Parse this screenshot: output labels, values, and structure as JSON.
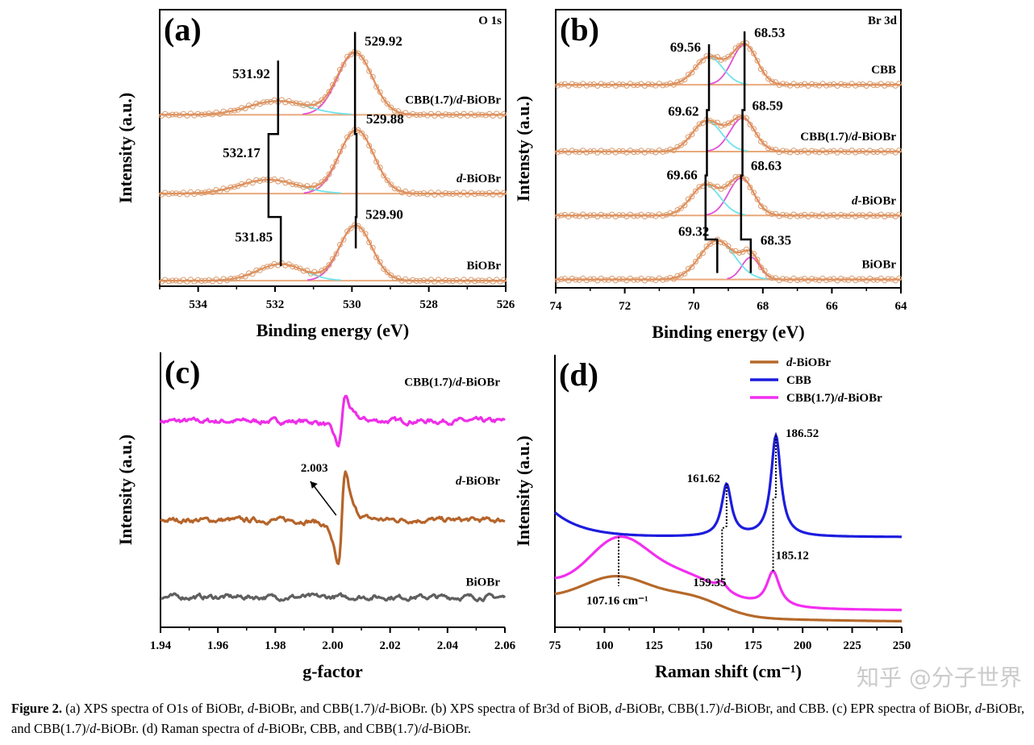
{
  "figure": {
    "caption_label": "Figure 2.",
    "caption_text": " (a) XPS spectra of O1s of BiOBr, d-BiOBr, and CBB(1.7)/d-BiOBr. (b) XPS spectra of Br3d of BiOB, d-BiOBr, CBB(1.7)/d-BiOBr, and CBB. (c) EPR spectra of BiOBr, d-BiOBr, and CBB(1.7)/d-BiOBr. (d) Raman spectra of d-BiOBr, CBB, and CBB(1.7)/d-BiOBr.",
    "watermark": "知乎 @分子世界"
  },
  "colors": {
    "envelope": "#e38b55",
    "markers": "#d99a6c",
    "component_main": "#e24fd6",
    "component_shoulder": "#6fe3ea",
    "baseline": "#e9a97c",
    "epr": [
      "#ee2ee8",
      "#b5642a",
      "#5f5f5f"
    ],
    "raman": [
      "#b5692a",
      "#1c1cde",
      "#f22ef0"
    ]
  },
  "chart_data": [
    {
      "type": "line",
      "panel_label": "(a)",
      "annotation": "O 1s",
      "xlabel": "Binding energy (eV)",
      "ylabel": "Intensity (a.u.)",
      "xlim": [
        535,
        526
      ],
      "xticks": [
        "534",
        "532",
        "530",
        "528",
        "526"
      ],
      "xtick_values": [
        534,
        532,
        530,
        528,
        526
      ],
      "minor_step": 1,
      "grid": false,
      "series": [
        {
          "name": "CBB(1.7)/d-BiOBr",
          "baseline": 0.62,
          "components": [
            {
              "center": 529.92,
              "amplitude": 0.225,
              "sigma": 0.45,
              "label": "529.92"
            },
            {
              "center": 531.92,
              "amplitude": 0.05,
              "sigma": 0.75,
              "label": "531.92"
            }
          ]
        },
        {
          "name": "d-BiOBr",
          "baseline": 0.335,
          "components": [
            {
              "center": 529.88,
              "amplitude": 0.23,
              "sigma": 0.45,
              "label": "529.88"
            },
            {
              "center": 532.17,
              "amplitude": 0.05,
              "sigma": 0.75,
              "label": "532.17"
            }
          ]
        },
        {
          "name": "BiOBr",
          "baseline": 0.02,
          "components": [
            {
              "center": 529.9,
              "amplitude": 0.2,
              "sigma": 0.42,
              "label": "529.90"
            },
            {
              "center": 531.85,
              "amplitude": 0.06,
              "sigma": 0.6,
              "label": "531.85"
            }
          ]
        }
      ]
    },
    {
      "type": "line",
      "panel_label": "(b)",
      "annotation": "Br 3d",
      "xlabel": "Binding energy (eV)",
      "ylabel": "Intensty (a.u.)",
      "xlim": [
        74,
        64
      ],
      "xticks": [
        "74",
        "72",
        "70",
        "68",
        "66",
        "64"
      ],
      "xtick_values": [
        74,
        72,
        70,
        68,
        66,
        64
      ],
      "minor_step": 1,
      "grid": false,
      "series": [
        {
          "name": "CBB",
          "baseline": 0.73,
          "components": [
            {
              "center": 68.53,
              "amplitude": 0.145,
              "sigma": 0.36,
              "label": "68.53"
            },
            {
              "center": 69.56,
              "amplitude": 0.1,
              "sigma": 0.4,
              "label": "69.56"
            }
          ]
        },
        {
          "name": "CBB(1.7)/d-BiOBr",
          "baseline": 0.49,
          "components": [
            {
              "center": 68.59,
              "amplitude": 0.12,
              "sigma": 0.36,
              "label": "68.59"
            },
            {
              "center": 69.62,
              "amplitude": 0.11,
              "sigma": 0.42,
              "label": "69.62"
            }
          ]
        },
        {
          "name": "d-BiOBr",
          "baseline": 0.26,
          "components": [
            {
              "center": 68.63,
              "amplitude": 0.135,
              "sigma": 0.36,
              "label": "68.63"
            },
            {
              "center": 69.66,
              "amplitude": 0.11,
              "sigma": 0.42,
              "label": "69.66"
            }
          ]
        },
        {
          "name": "BiOBr",
          "baseline": 0.03,
          "components": [
            {
              "center": 68.35,
              "amplitude": 0.08,
              "sigma": 0.26,
              "label": "68.35"
            },
            {
              "center": 69.32,
              "amplitude": 0.14,
              "sigma": 0.5,
              "label": "69.32"
            }
          ]
        }
      ]
    },
    {
      "type": "line",
      "panel_label": "(c)",
      "xlabel": "g-factor",
      "ylabel": "Intensity (a.u.)",
      "xlim": [
        1.94,
        2.06
      ],
      "xticks": [
        "1.94",
        "1.96",
        "1.98",
        "2.00",
        "2.02",
        "2.04",
        "2.06"
      ],
      "xtick_values": [
        1.94,
        1.96,
        1.98,
        2.0,
        2.02,
        2.04,
        2.06
      ],
      "minor_step": 0.01,
      "grid": false,
      "annotation_value": "2.003",
      "series": [
        {
          "name": "CBB(1.7)/d-BiOBr",
          "baseline": 0.75,
          "signal_center": 2.003,
          "signal_amplitude": 0.09
        },
        {
          "name": "d-BiOBr",
          "baseline": 0.39,
          "signal_center": 2.003,
          "signal_amplitude": 0.17
        },
        {
          "name": "BiOBr",
          "baseline": 0.11,
          "signal_center": 2.003,
          "signal_amplitude": 0
        }
      ]
    },
    {
      "type": "line",
      "panel_label": "(d)",
      "xlabel": "Raman shift (cm⁻¹)",
      "ylabel": "Intensity (a.u.)",
      "xlim": [
        75,
        250
      ],
      "xticks": [
        "75",
        "100",
        "125",
        "150",
        "175",
        "200",
        "225",
        "250"
      ],
      "xtick_values": [
        75,
        100,
        125,
        150,
        175,
        200,
        225,
        250
      ],
      "minor_step": 12.5,
      "grid": false,
      "legend_position": "top-right",
      "series": [
        {
          "name": "d-BiOBr",
          "offset": 0.018,
          "decay": {
            "amplitude": 0.08,
            "length": 60
          },
          "peaks": [
            {
              "shape": "gaussian",
              "center": 107.16,
              "amplitude": 0.12,
              "width": 18
            },
            {
              "shape": "gaussian",
              "center": 145,
              "amplitude": 0.06,
              "width": 15
            }
          ]
        },
        {
          "name": "CBB",
          "offset": 0.331,
          "decay": {
            "amplitude": 0.09,
            "length": 15
          },
          "peaks": [
            {
              "shape": "lorentzian",
              "center": 161.62,
              "amplitude": 0.19,
              "width": 3
            },
            {
              "shape": "lorentzian",
              "center": 186.52,
              "amplitude": 0.37,
              "width": 3
            }
          ]
        },
        {
          "name": "CBB(1.7)/d-BiOBr",
          "offset": 0.06,
          "decay": {
            "amplitude": 0.1,
            "length": 50
          },
          "peaks": [
            {
              "shape": "gaussian",
              "center": 107.16,
              "amplitude": 0.2,
              "width": 15
            },
            {
              "shape": "gaussian",
              "center": 140,
              "amplitude": 0.1,
              "width": 18
            },
            {
              "shape": "lorentzian",
              "center": 159.35,
              "amplitude": 0.03,
              "width": 3
            },
            {
              "shape": "lorentzian",
              "center": 185.12,
              "amplitude": 0.13,
              "width": 4
            }
          ]
        }
      ],
      "peak_labels": [
        "107.16 cm⁻¹",
        "159.35",
        "161.62",
        "185.12",
        "186.52"
      ]
    }
  ]
}
